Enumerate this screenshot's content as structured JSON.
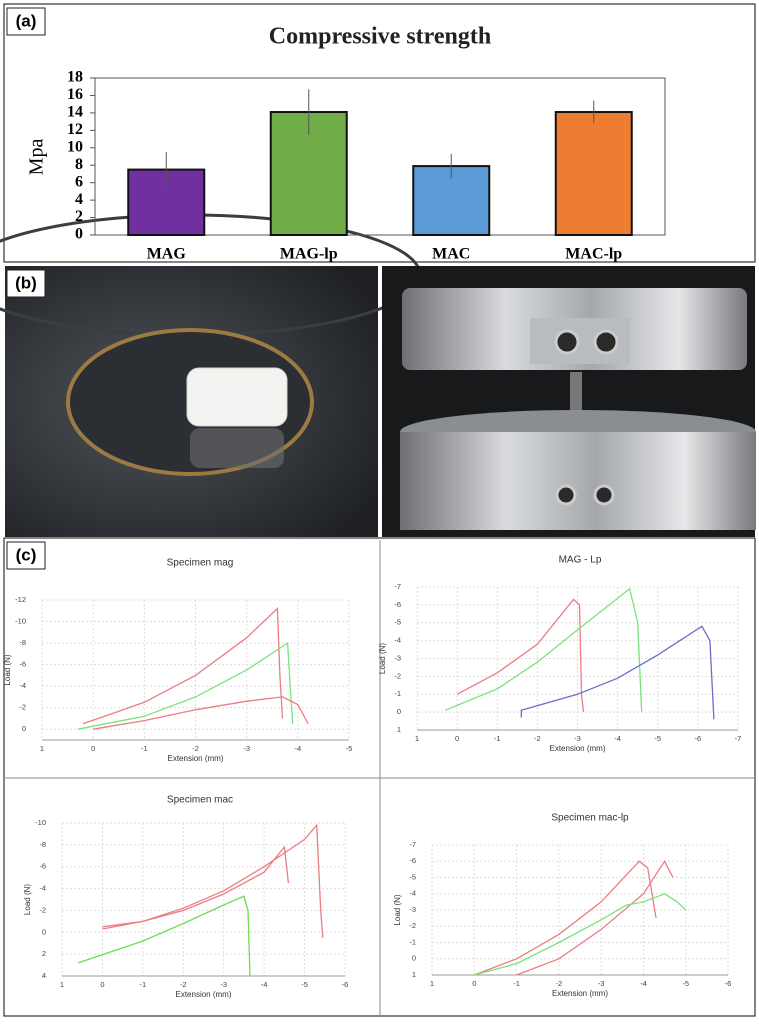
{
  "panel_labels": [
    "(a)",
    "(b)",
    "(c)"
  ],
  "chart_data": [
    {
      "type": "bar",
      "title": "Compressive strength",
      "y_label": "Mpa",
      "categories": [
        "MAG",
        "MAG-lp",
        "MAC",
        "MAC-lp"
      ],
      "values": [
        7.5,
        14.1,
        7.9,
        14.1
      ],
      "errors": [
        2,
        2.6,
        1.4,
        1.3
      ],
      "colors": [
        "#7030a0",
        "#70ad47",
        "#5b9bd5",
        "#ed7d31"
      ],
      "ylim": [
        0,
        18
      ],
      "yticks": [
        0,
        2,
        4,
        6,
        8,
        10,
        12,
        14,
        16,
        18
      ]
    },
    {
      "type": "line",
      "title": "Specimen mag",
      "x_label": "Extension (mm)",
      "y_label": "Load (N)",
      "grid": true,
      "xlim": [
        1,
        -5
      ],
      "xticks": [
        1,
        0,
        -1,
        -2,
        -3,
        -4,
        -5
      ],
      "ylim": [
        1,
        -12
      ],
      "yticks": [
        -12,
        -10,
        -8,
        -6,
        -4,
        -2,
        0
      ],
      "series": [
        {
          "color": "#ec7c84",
          "x": [
            0.2,
            -1,
            -2,
            -3,
            -3.6,
            -3.65,
            -3.7
          ],
          "values": [
            -0.5,
            -2.5,
            -5,
            -8.5,
            -11.2,
            -5,
            -1
          ]
        },
        {
          "color": "#7be37b",
          "x": [
            0.3,
            -1,
            -2,
            -3,
            -3.8,
            -3.85,
            -3.9
          ],
          "values": [
            0,
            -1.2,
            -3,
            -5.5,
            -8,
            -4,
            -0.5
          ]
        },
        {
          "color": "#ec7c84",
          "x": [
            0,
            -1,
            -2,
            -3,
            -3.7,
            -4,
            -4.2
          ],
          "values": [
            0,
            -0.8,
            -1.8,
            -2.6,
            -3,
            -2.3,
            -0.5
          ]
        }
      ]
    },
    {
      "type": "line",
      "title": "MAG - Lp",
      "x_label": "Extension (mm)",
      "y_label": "Load (N)",
      "grid": true,
      "xlim": [
        1,
        -7
      ],
      "xticks": [
        1,
        0,
        -1,
        -2,
        -3,
        -4,
        -5,
        -6,
        -7
      ],
      "ylim": [
        1,
        -7
      ],
      "yticks": [
        -7,
        -6,
        -5,
        -4,
        -3,
        -2,
        -1,
        0,
        1
      ],
      "series": [
        {
          "color": "#ec7c84",
          "x": [
            0,
            -1,
            -2,
            -2.9,
            -3.05,
            -3.1,
            -3.15
          ],
          "values": [
            -1,
            -2.2,
            -3.8,
            -6.3,
            -6,
            -1,
            0
          ]
        },
        {
          "color": "#7be37b",
          "x": [
            0.3,
            -1,
            -2,
            -3,
            -4.3,
            -4.5,
            -4.6
          ],
          "values": [
            -0.1,
            -1.3,
            -2.8,
            -4.6,
            -6.9,
            -5,
            0
          ]
        },
        {
          "color": "#6c6ccc",
          "x": [
            -1.6,
            -1.6,
            -3,
            -4,
            -5,
            -6.1,
            -6.3,
            -6.4
          ],
          "values": [
            0.3,
            -0.1,
            -1,
            -1.9,
            -3.2,
            -4.8,
            -4,
            0.4
          ]
        }
      ]
    },
    {
      "type": "line",
      "title": "Specimen mac",
      "x_label": "Extension (mm)",
      "y_label": "Load (N)",
      "grid": true,
      "xlim": [
        1,
        -6
      ],
      "xticks": [
        1,
        0,
        -1,
        -2,
        -3,
        -4,
        -5,
        -6
      ],
      "ylim": [
        4,
        -10
      ],
      "yticks": [
        -10,
        -8,
        -6,
        -4,
        -2,
        0,
        2,
        4
      ],
      "series": [
        {
          "color": "#ec7c84",
          "x": [
            0,
            -1,
            -2,
            -3,
            -4,
            -4.5,
            -4.6
          ],
          "values": [
            -0.5,
            -1,
            -2,
            -3.5,
            -5.5,
            -7.8,
            -4.5
          ]
        },
        {
          "color": "#ec7c84",
          "x": [
            0,
            -1,
            -2,
            -3,
            -4,
            -5,
            -5.3,
            -5.4,
            -5.45
          ],
          "values": [
            -0.3,
            -1,
            -2.2,
            -3.8,
            -6,
            -8.5,
            -9.8,
            -2,
            0.5
          ]
        },
        {
          "color": "#6fdc4f",
          "x": [
            0.6,
            -1,
            -2,
            -3,
            -3.5,
            -3.6,
            -3.65
          ],
          "values": [
            2.8,
            0.8,
            -0.8,
            -2.5,
            -3.3,
            -2,
            4
          ]
        }
      ]
    },
    {
      "type": "line",
      "title": "Specimen mac-lp",
      "x_label": "Extension (mm)",
      "y_label": "Load (N)",
      "grid": true,
      "xlim": [
        1,
        -6
      ],
      "xticks": [
        1,
        0,
        -1,
        -2,
        -3,
        -4,
        -5,
        -6
      ],
      "ylim": [
        1,
        -7
      ],
      "yticks": [
        -7,
        -6,
        -5,
        -4,
        -3,
        -2,
        -1,
        0,
        1
      ],
      "series": [
        {
          "color": "#ec7c84",
          "x": [
            0,
            -1,
            -2,
            -3,
            -3.9,
            -4.1,
            -4.3
          ],
          "values": [
            1,
            0,
            -1.5,
            -3.5,
            -6,
            -5.6,
            -2.5
          ]
        },
        {
          "color": "#ec7c84",
          "x": [
            -1,
            -2,
            -3,
            -4,
            -4.5,
            -4.6,
            -4.7
          ],
          "values": [
            1,
            0,
            -1.8,
            -4,
            -6,
            -5.5,
            -5
          ]
        },
        {
          "color": "#7be37b",
          "x": [
            0,
            -1,
            -2,
            -3,
            -3.6,
            -4,
            -4.5,
            -4.8,
            -5
          ],
          "values": [
            1,
            0.3,
            -1,
            -2.4,
            -3.3,
            -3.5,
            -4,
            -3.5,
            -3
          ]
        }
      ]
    }
  ]
}
